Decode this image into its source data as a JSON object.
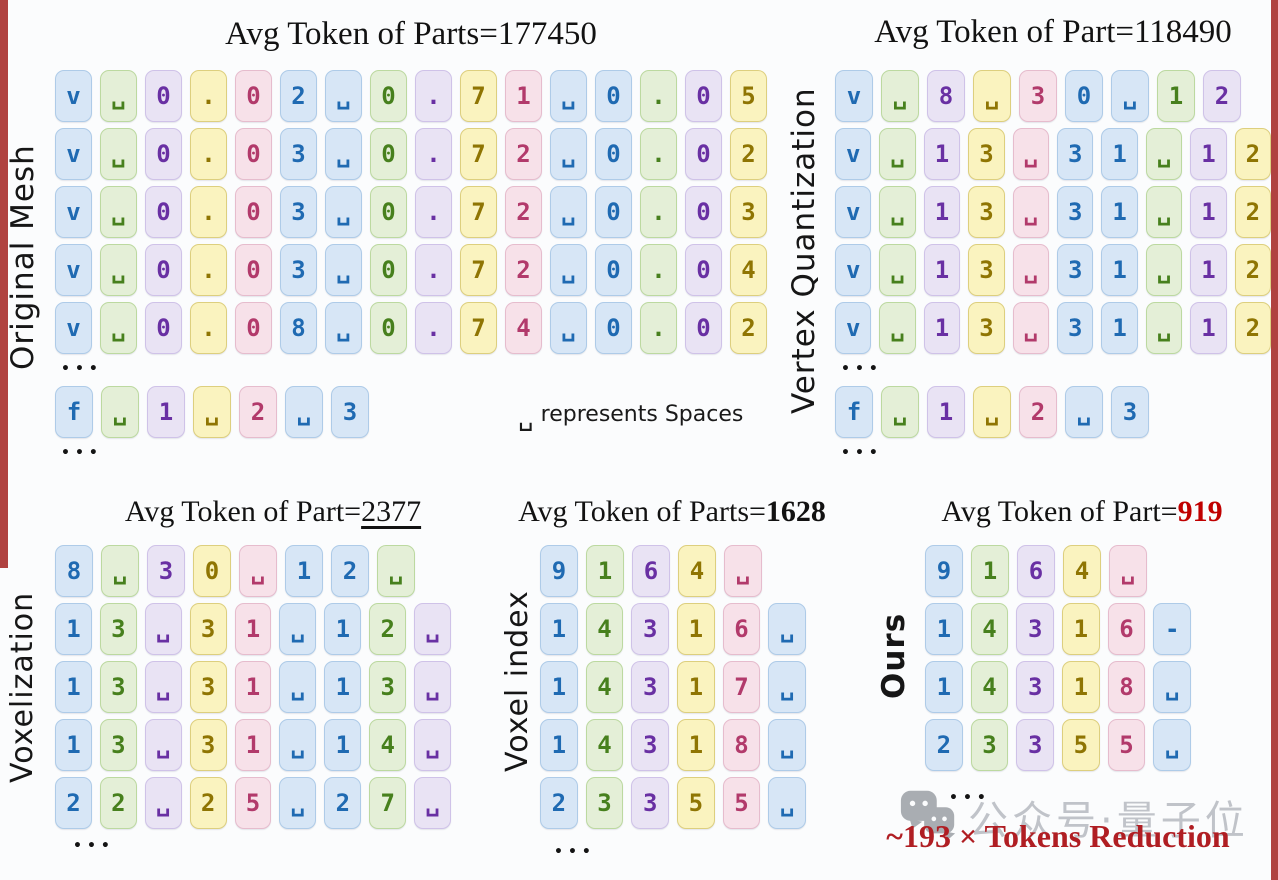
{
  "colors": {
    "accent_red": "#b01e23",
    "border_red": "#b04240",
    "title_red": "#c00000",
    "watermark_gray": "#b6bac0",
    "icon_gray": "#9ba0a6",
    "themes": {
      "blue": {
        "bg": "#d7e6f6",
        "bd": "#aecbe8",
        "tx": "#1f6ab2"
      },
      "green": {
        "bg": "#e4efd7",
        "bd": "#bcd9a0",
        "tx": "#47801d"
      },
      "lavender": {
        "bg": "#e9e3f4",
        "bd": "#cfc2e8",
        "tx": "#6930a3"
      },
      "yellow": {
        "bg": "#faf3bf",
        "bd": "#ddcf7e",
        "tx": "#8f7503"
      },
      "pink": {
        "bg": "#f7e1e9",
        "bd": "#e6bccd",
        "tx": "#b23a6b"
      }
    }
  },
  "color_cycle": [
    "blue",
    "green",
    "lavender",
    "yellow",
    "pink",
    "blue"
  ],
  "ellipsis": "•••",
  "note": {
    "symbol": "␣",
    "text": "represents Spaces"
  },
  "watermark": {
    "icon": "wechat-icon",
    "text": "公众号·量子位"
  },
  "reduction_text": "~193 × Tokens Reduction",
  "panels": [
    {
      "key": "original-mesh",
      "label": "Original Mesh",
      "title": {
        "prefix": "Avg Token of Parts=",
        "value": "177450",
        "value_style": "plain"
      },
      "blocks": [
        {
          "type": "grid",
          "rows": [
            [
              "v",
              "␣",
              "0",
              ".",
              "0",
              "2",
              "␣",
              "0",
              ".",
              "7",
              "1",
              "␣",
              "0",
              ".",
              "0",
              "5"
            ],
            [
              "v",
              "␣",
              "0",
              ".",
              "0",
              "3",
              "␣",
              "0",
              ".",
              "7",
              "2",
              "␣",
              "0",
              ".",
              "0",
              "2"
            ],
            [
              "v",
              "␣",
              "0",
              ".",
              "0",
              "3",
              "␣",
              "0",
              ".",
              "7",
              "2",
              "␣",
              "0",
              ".",
              "0",
              "3"
            ],
            [
              "v",
              "␣",
              "0",
              ".",
              "0",
              "3",
              "␣",
              "0",
              ".",
              "7",
              "2",
              "␣",
              "0",
              ".",
              "0",
              "4"
            ],
            [
              "v",
              "␣",
              "0",
              ".",
              "0",
              "8",
              "␣",
              "0",
              ".",
              "7",
              "4",
              "␣",
              "0",
              ".",
              "0",
              "2"
            ]
          ]
        },
        {
          "type": "dots"
        },
        {
          "type": "grid",
          "rows": [
            [
              "f",
              "␣",
              "1",
              "␣",
              "2",
              "␣",
              "3"
            ]
          ]
        },
        {
          "type": "dots"
        }
      ]
    },
    {
      "key": "vertex-quantization",
      "label": "Vertex Quantization",
      "title": {
        "prefix": "Avg Token of Part=",
        "value": "118490",
        "value_style": "plain"
      },
      "blocks": [
        {
          "type": "grid",
          "rows": [
            [
              "v",
              "␣",
              "8",
              "␣",
              "3",
              "0",
              "␣",
              "1",
              "2"
            ],
            [
              "v",
              "␣",
              "1",
              "3",
              "␣",
              "3",
              "1",
              "␣",
              "1",
              "2"
            ],
            [
              "v",
              "␣",
              "1",
              "3",
              "␣",
              "3",
              "1",
              "␣",
              "1",
              "2"
            ],
            [
              "v",
              "␣",
              "1",
              "3",
              "␣",
              "3",
              "1",
              "␣",
              "1",
              "2"
            ],
            [
              "v",
              "␣",
              "1",
              "3",
              "␣",
              "3",
              "1",
              "␣",
              "1",
              "2"
            ]
          ]
        },
        {
          "type": "dots"
        },
        {
          "type": "grid",
          "rows": [
            [
              "f",
              "␣",
              "1",
              "␣",
              "2",
              "␣",
              "3"
            ]
          ]
        },
        {
          "type": "dots"
        }
      ]
    },
    {
      "key": "voxelization",
      "label": "Voxelization",
      "title": {
        "prefix": "Avg Token of Part=",
        "value": "2377",
        "value_style": "underline"
      },
      "blocks": [
        {
          "type": "grid",
          "rows": [
            [
              "8",
              "␣",
              "3",
              "0",
              "␣",
              "1",
              "2",
              "␣"
            ],
            [
              "1",
              "3",
              "␣",
              "3",
              "1",
              "␣",
              "1",
              "2",
              "␣"
            ],
            [
              "1",
              "3",
              "␣",
              "3",
              "1",
              "␣",
              "1",
              "3",
              "␣"
            ],
            [
              "1",
              "3",
              "␣",
              "3",
              "1",
              "␣",
              "1",
              "4",
              "␣"
            ],
            [
              "2",
              "2",
              "␣",
              "2",
              "5",
              "␣",
              "2",
              "7",
              "␣"
            ]
          ]
        },
        {
          "type": "dots"
        }
      ]
    },
    {
      "key": "voxel-index",
      "label": "Voxel index",
      "title": {
        "prefix": "Avg Token of Parts=",
        "value": "1628",
        "value_style": "bold"
      },
      "blocks": [
        {
          "type": "grid",
          "rows": [
            [
              "9",
              "1",
              "6",
              "4",
              "␣"
            ],
            [
              "1",
              "4",
              "3",
              "1",
              "6",
              "␣"
            ],
            [
              "1",
              "4",
              "3",
              "1",
              "7",
              "␣"
            ],
            [
              "1",
              "4",
              "3",
              "1",
              "8",
              "␣"
            ],
            [
              "2",
              "3",
              "3",
              "5",
              "5",
              "␣"
            ]
          ]
        },
        {
          "type": "dots"
        }
      ]
    },
    {
      "key": "ours",
      "label": "Ours",
      "title": {
        "prefix": "Avg Token of Part=",
        "value": "919",
        "value_style": "red"
      },
      "blocks": [
        {
          "type": "grid",
          "rows": [
            [
              "9",
              "1",
              "6",
              "4",
              "␣"
            ],
            [
              "1",
              "4",
              "3",
              "1",
              "6",
              "-"
            ],
            [
              "1",
              "4",
              "3",
              "1",
              "8",
              "␣"
            ],
            [
              "2",
              "3",
              "3",
              "5",
              "5",
              "␣"
            ]
          ]
        },
        {
          "type": "dots"
        }
      ]
    }
  ]
}
